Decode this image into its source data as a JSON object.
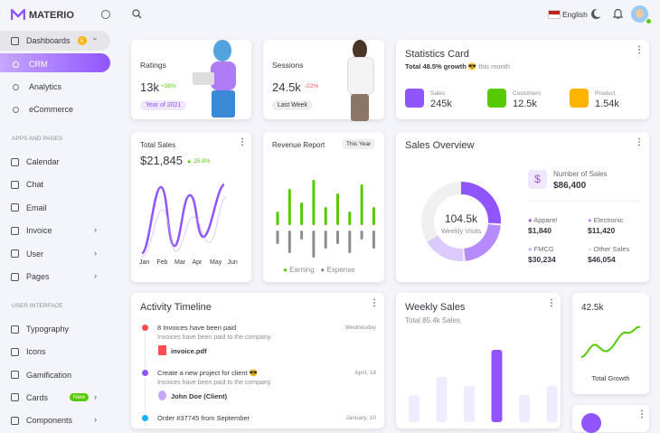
{
  "header": {
    "brand": "MATERIO",
    "language": "English"
  },
  "sidebar": {
    "dashboards": {
      "label": "Dashboards",
      "badge": 5
    },
    "sub": [
      "CRM",
      "Analytics",
      "eCommerce"
    ],
    "section1": "APPS AND PAGES",
    "apps": [
      "Calendar",
      "Chat",
      "Email",
      "Invoice",
      "User",
      "Pages"
    ],
    "section2": "USER INTERFACE",
    "ui": [
      "Typography",
      "Icons",
      "Gamification",
      "Cards",
      "Components"
    ],
    "cards_badge": "New"
  },
  "ratings": {
    "title": "Ratings",
    "value": "13k",
    "change": "+38%",
    "tag": "Year of 2021"
  },
  "sessions": {
    "title": "Sessions",
    "value": "24.5k",
    "change": "-22%",
    "tag": "Last Week"
  },
  "statistics": {
    "title": "Statistics Card",
    "growth": "Total 48.5% growth",
    "period": "😎 this month",
    "items": [
      {
        "label": "Sales",
        "value": "245k"
      },
      {
        "label": "Customers",
        "value": "12.5k"
      },
      {
        "label": "Product",
        "value": "1.54k"
      }
    ]
  },
  "total_sales": {
    "title": "Total Sales",
    "value": "$21,845",
    "change": "25.8%",
    "months": [
      "Jan",
      "Feb",
      "Mar",
      "Apr",
      "May",
      "Jun"
    ]
  },
  "revenue": {
    "title": "Revenue Report",
    "tag": "This Year",
    "legend": [
      "Earning",
      "Expense"
    ],
    "earning": [
      15,
      40,
      25,
      50,
      20,
      35,
      15,
      45,
      20
    ],
    "expense": [
      15,
      25,
      10,
      30,
      20,
      15,
      25,
      10,
      20
    ]
  },
  "sales_overview": {
    "title": "Sales Overview",
    "center_value": "104.5k",
    "center_label": "Weekly Visits",
    "number_label": "Number of Sales",
    "number_value": "$86,400",
    "items": [
      {
        "label": "Apparel",
        "value": "$1,840"
      },
      {
        "label": "Electronic",
        "value": "$11,420"
      },
      {
        "label": "FMCG",
        "value": "$30,234"
      },
      {
        "label": "Other Sales",
        "value": "$46,054"
      }
    ]
  },
  "activity": {
    "title": "Activity Timeline",
    "events": [
      {
        "title": "8 Invoices have been paid",
        "time": "Wednesday",
        "desc": "Invoices have been paid to the company.",
        "extra": "invoice.pdf"
      },
      {
        "title": "Create a new project for client 😎",
        "time": "April, 18",
        "desc": "Invoices have been paid to the company.",
        "extra": "John Doe (Client)"
      },
      {
        "title": "Order #37745 from September",
        "time": "January, 10"
      }
    ]
  },
  "weekly_sales": {
    "title": "Weekly Sales",
    "subtitle": "Total 85.4k Sales",
    "values": [
      30,
      50,
      40,
      80,
      30,
      40
    ]
  },
  "total_growth": {
    "value": "42.5k",
    "label": "Total Growth"
  }
}
